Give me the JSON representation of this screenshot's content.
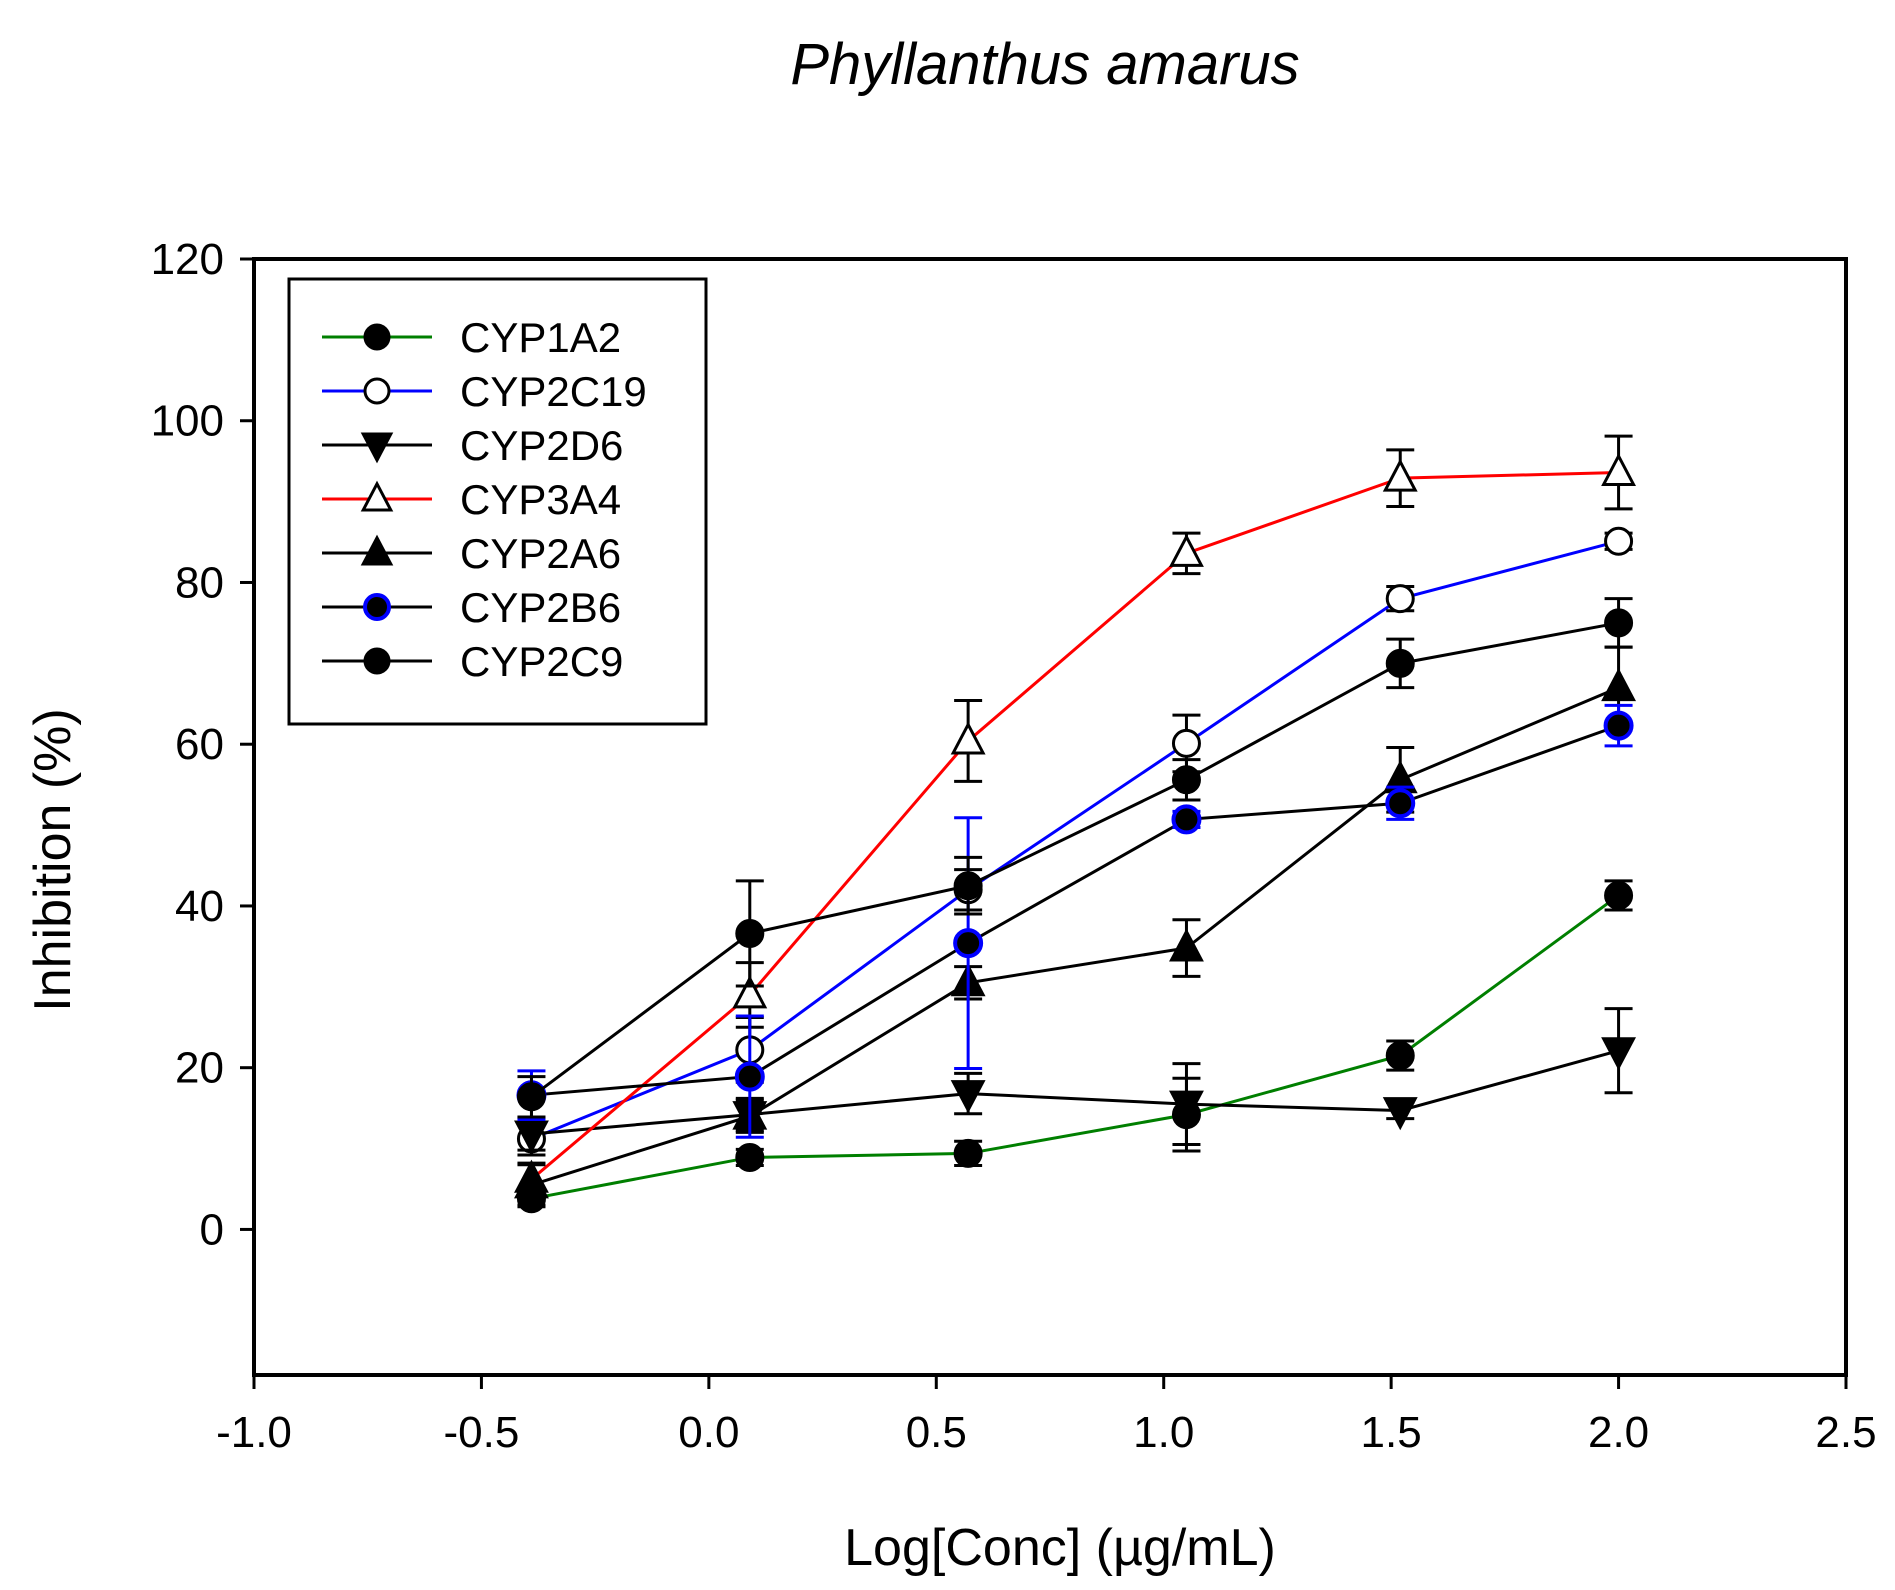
{
  "chart_data": {
    "type": "line",
    "title": "Phyllanthus amarus",
    "xlabel": "Log[Conc] (µg/mL)",
    "ylabel": "Inhibition (%)",
    "xlim": [
      -1.0,
      2.5
    ],
    "ylim": [
      -18,
      120
    ],
    "xticks": [
      -1.0,
      -0.5,
      0.0,
      0.5,
      1.0,
      1.5,
      2.0,
      2.5
    ],
    "xtick_labels": [
      "-1.0",
      "-0.5",
      "0.0",
      "0.5",
      "1.0",
      "1.5",
      "2.0",
      "2.5"
    ],
    "yticks": [
      0,
      20,
      40,
      60,
      80,
      100,
      120
    ],
    "ytick_labels": [
      "0",
      "20",
      "40",
      "60",
      "80",
      "100",
      "120"
    ],
    "grid": false,
    "legend_position": "top-left",
    "x": [
      -0.39,
      0.09,
      0.57,
      1.05,
      1.52,
      2.0
    ],
    "series": [
      {
        "name": "CYP1A2",
        "line_color": "#007f00",
        "marker": "filled-circle",
        "marker_fill": "#000000",
        "marker_stroke": "#000000",
        "errbar_color": "#000000",
        "values": [
          3.8,
          8.9,
          9.4,
          14.2,
          21.5,
          41.3
        ],
        "errors": [
          1.0,
          1.0,
          1.5,
          4.5,
          1.8,
          1.8
        ]
      },
      {
        "name": "CYP2C19",
        "line_color": "#0000ff",
        "marker": "open-circle",
        "marker_fill": "#ffffff",
        "marker_stroke": "#000000",
        "errbar_color": "#000000",
        "values": [
          11.2,
          22.2,
          42.0,
          60.1,
          78.0,
          85.1
        ],
        "errors": [
          2.0,
          4.0,
          2.5,
          3.5,
          1.5,
          1.0
        ]
      },
      {
        "name": "CYP2D6",
        "line_color": "#000000",
        "marker": "filled-triangle-down",
        "marker_fill": "#000000",
        "marker_stroke": "#000000",
        "errbar_color": "#000000",
        "values": [
          11.8,
          14.2,
          16.8,
          15.5,
          14.7,
          22.1
        ],
        "errors": [
          2.0,
          2.0,
          2.5,
          5.0,
          1.0,
          5.2
        ]
      },
      {
        "name": "CYP3A4",
        "line_color": "#ff0000",
        "marker": "open-triangle-up",
        "marker_fill": "#ffffff",
        "marker_stroke": "#000000",
        "errbar_color": "#000000",
        "values": [
          6.2,
          29.0,
          60.4,
          83.6,
          92.9,
          93.6
        ],
        "errors": [
          2.0,
          4.0,
          5.0,
          2.5,
          3.5,
          4.5
        ]
      },
      {
        "name": "CYP2A6",
        "line_color": "#000000",
        "marker": "filled-triangle-up",
        "marker_fill": "#000000",
        "marker_stroke": "#000000",
        "errbar_color": "#000000",
        "values": [
          5.5,
          14.0,
          30.5,
          34.8,
          55.6,
          67.0
        ],
        "errors": [
          2.5,
          2.0,
          2.0,
          3.5,
          4.0,
          5.0
        ]
      },
      {
        "name": "CYP2B6",
        "line_color": "#000000",
        "marker": "blue-circle",
        "marker_fill": "#000000",
        "marker_stroke": "#0000ff",
        "errbar_color": "#0000ff",
        "values": [
          16.6,
          18.9,
          35.4,
          50.7,
          52.7,
          62.3
        ],
        "errors": [
          3.0,
          7.5,
          15.5,
          1.0,
          2.0,
          2.5
        ]
      },
      {
        "name": "CYP2C9",
        "line_color": "#000000",
        "marker": "filled-circle",
        "marker_fill": "#000000",
        "marker_stroke": "#000000",
        "errbar_color": "#000000",
        "values": [
          16.4,
          36.6,
          42.5,
          55.6,
          70.0,
          75.0
        ],
        "errors": [
          2.5,
          6.5,
          3.5,
          2.5,
          3.0,
          3.0
        ]
      }
    ]
  }
}
